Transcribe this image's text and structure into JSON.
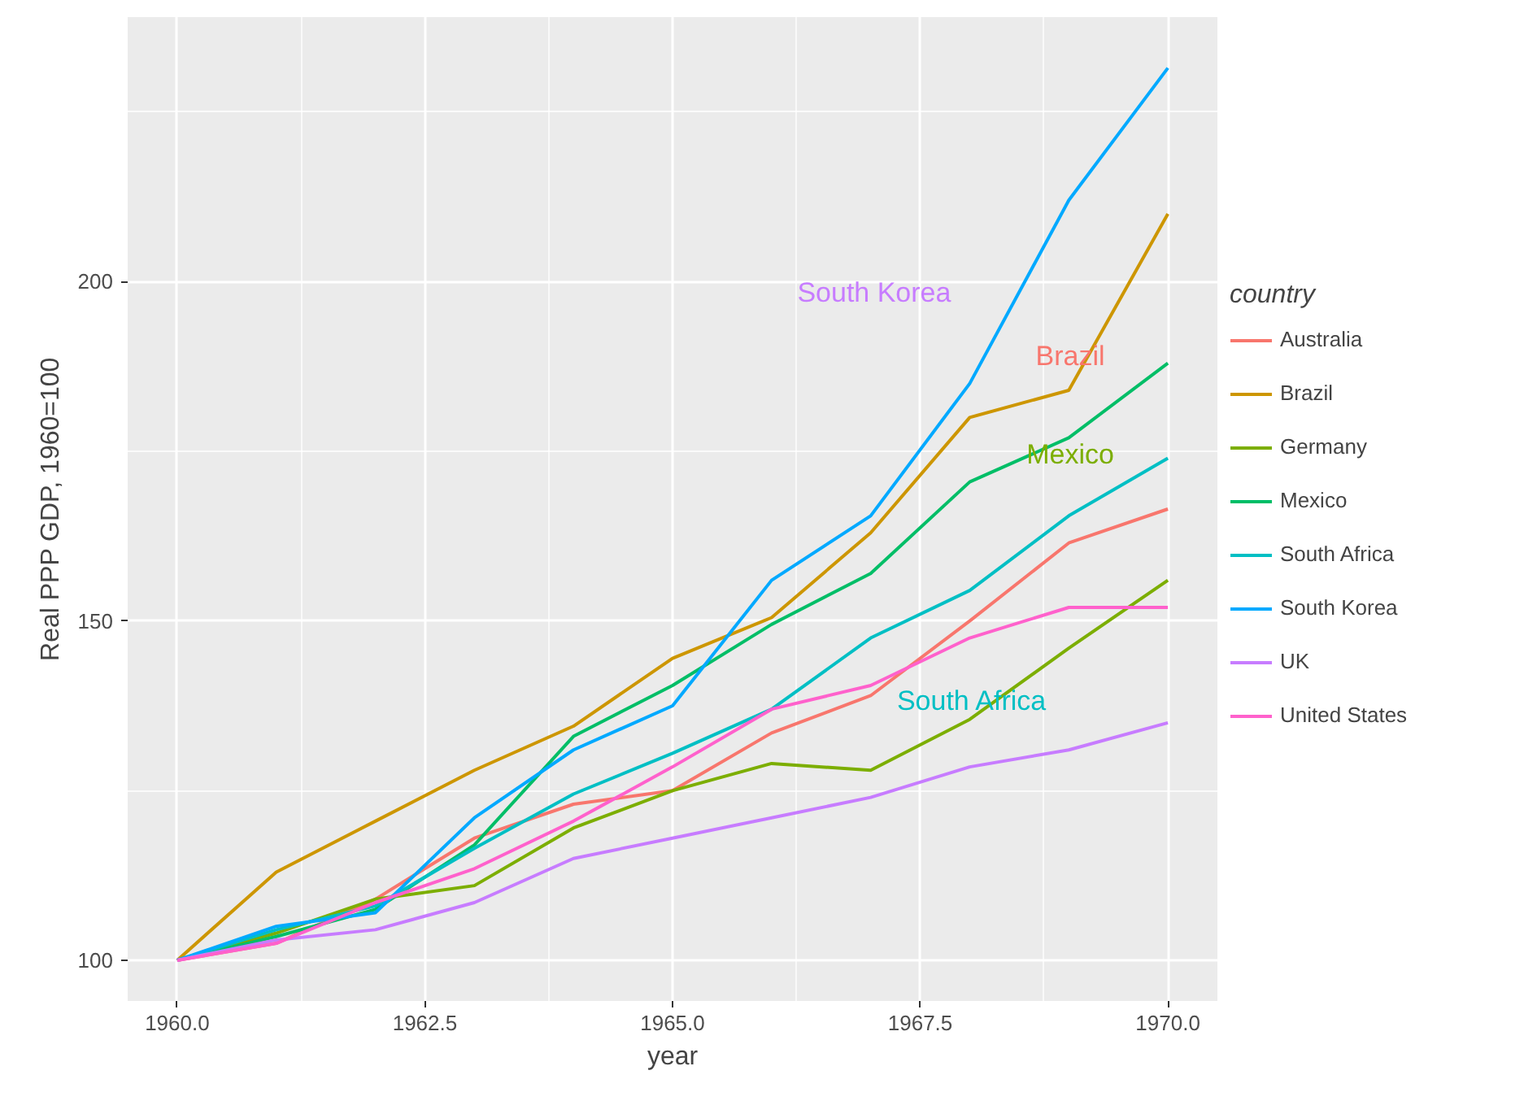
{
  "chart_data": {
    "type": "line",
    "xlabel": "year",
    "ylabel": "Real PPP GDP, 1960=100",
    "legend_title": "country",
    "legend": "right",
    "grid": true,
    "x": [
      1960,
      1961,
      1962,
      1963,
      1964,
      1965,
      1966,
      1967,
      1968,
      1969,
      1970
    ],
    "xlim": [
      1959.5,
      1970.5
    ],
    "xticks": [
      {
        "value": 1960,
        "label": "1960.0"
      },
      {
        "value": 1962.5,
        "label": "1962.5"
      },
      {
        "value": 1965,
        "label": "1965.0"
      },
      {
        "value": 1967.5,
        "label": "1967.5"
      },
      {
        "value": 1970,
        "label": "1970.0"
      }
    ],
    "ylim": [
      94,
      239
    ],
    "yticks": [
      100,
      150,
      200
    ],
    "series": [
      {
        "name": "Australia",
        "color": "#f8766d",
        "values": [
          100,
          102.5,
          109,
          118,
          123,
          125,
          133.5,
          139,
          150,
          161.5,
          166.5
        ]
      },
      {
        "name": "Brazil",
        "color": "#cd9600",
        "values": [
          100,
          113,
          120.5,
          128,
          134.5,
          144.5,
          150.5,
          163,
          180,
          184,
          210
        ]
      },
      {
        "name": "Germany",
        "color": "#7cae00",
        "values": [
          100,
          104,
          109,
          111,
          119.5,
          125,
          129,
          128,
          135.5,
          146,
          156
        ]
      },
      {
        "name": "Mexico",
        "color": "#00be67",
        "values": [
          100,
          103.5,
          107.5,
          117,
          133,
          140.5,
          149.5,
          157,
          170.5,
          177,
          188
        ]
      },
      {
        "name": "South Africa",
        "color": "#00bfc4",
        "values": [
          100,
          104.5,
          108,
          116.5,
          124.5,
          130.5,
          137,
          147.5,
          154.5,
          165.5,
          174
        ]
      },
      {
        "name": "South Korea",
        "color": "#00a9ff",
        "values": [
          100,
          105,
          107,
          121,
          131,
          137.5,
          156,
          165.5,
          185,
          212,
          231.5
        ]
      },
      {
        "name": "UK",
        "color": "#c77cff",
        "values": [
          100,
          103,
          104.5,
          108.5,
          115,
          118,
          121,
          124,
          128.5,
          131,
          135
        ]
      },
      {
        "name": "United States",
        "color": "#ff61cc",
        "values": [
          100,
          102.5,
          108.5,
          113.5,
          120.5,
          128.5,
          137,
          140.5,
          147.5,
          152,
          152
        ]
      }
    ],
    "annotations": [
      "Brazil",
      "Mexico",
      "South Africa",
      "South Korea"
    ]
  }
}
